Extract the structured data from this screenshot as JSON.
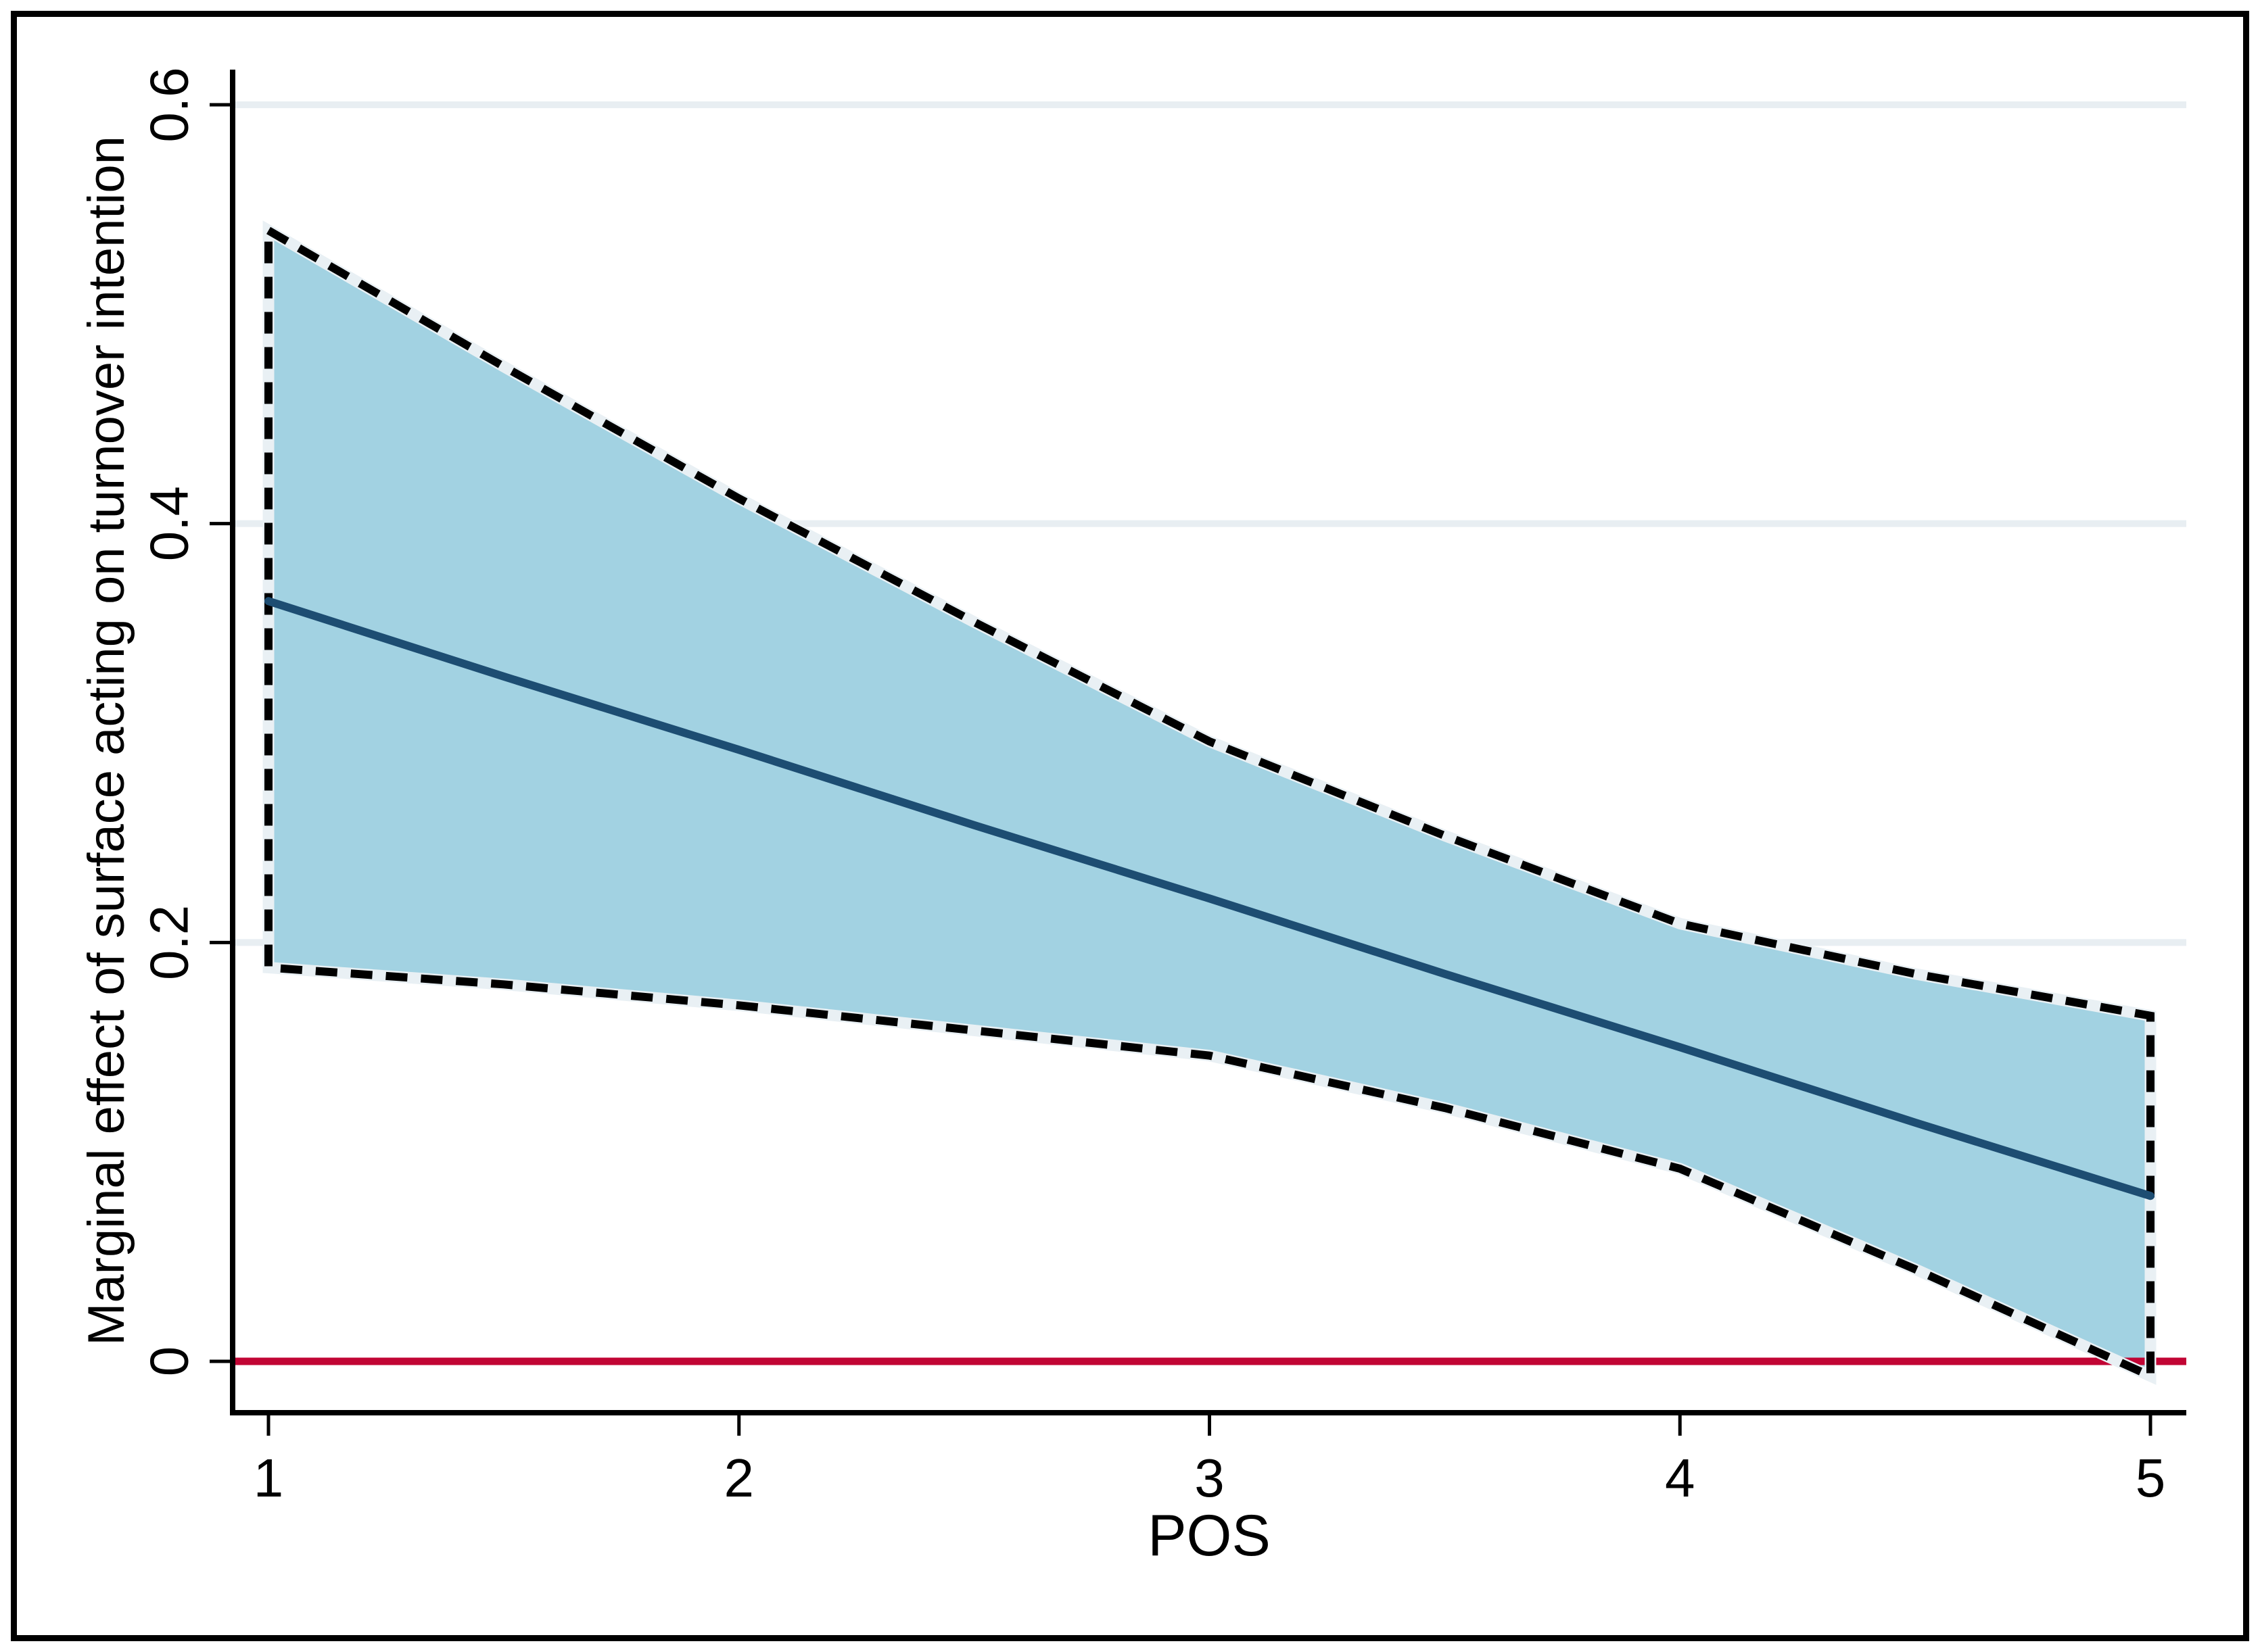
{
  "chart_data": {
    "type": "line",
    "title": "",
    "xlabel": "POS",
    "ylabel": "Marginal effect of surface acting on turnover intention",
    "x": [
      1,
      1.5,
      2,
      2.5,
      3,
      3.5,
      4,
      4.5,
      5
    ],
    "series": [
      {
        "name": "marginal_effect",
        "style": "solid",
        "color": "#1d4d72",
        "values": [
          0.363,
          0.327,
          0.292,
          0.256,
          0.221,
          0.185,
          0.15,
          0.114,
          0.079
        ]
      },
      {
        "name": "upper_95_ci",
        "style": "dashed",
        "color": "#000000",
        "values": [
          0.54,
          0.475,
          0.412,
          0.353,
          0.296,
          0.251,
          0.209,
          0.185,
          0.165
        ]
      },
      {
        "name": "lower_95_ci",
        "style": "dashed",
        "color": "#000000",
        "values": [
          0.188,
          0.18,
          0.17,
          0.158,
          0.146,
          0.121,
          0.092,
          0.044,
          -0.007
        ]
      }
    ],
    "ci_band": {
      "upper": "upper_95_ci",
      "lower": "lower_95_ci",
      "fill": "#a2d2e2",
      "edge_halo": "#e9f0f4"
    },
    "zero_line": {
      "y": 0,
      "color": "#c10534"
    },
    "xticks": {
      "values": [
        1,
        2,
        3,
        4,
        5
      ],
      "labels": [
        "1",
        "2",
        "3",
        "4",
        "5"
      ]
    },
    "yticks": {
      "values": [
        0,
        0.2,
        0.4,
        0.6
      ],
      "labels": [
        "0",
        "0.2",
        "0.4",
        "0.6"
      ]
    },
    "xlim": [
      1,
      5
    ],
    "ylim": [
      -0.02,
      0.62
    ],
    "grid": true,
    "grid_color": "#e8eef2",
    "axis_color": "#000000",
    "legend_position": "none"
  }
}
